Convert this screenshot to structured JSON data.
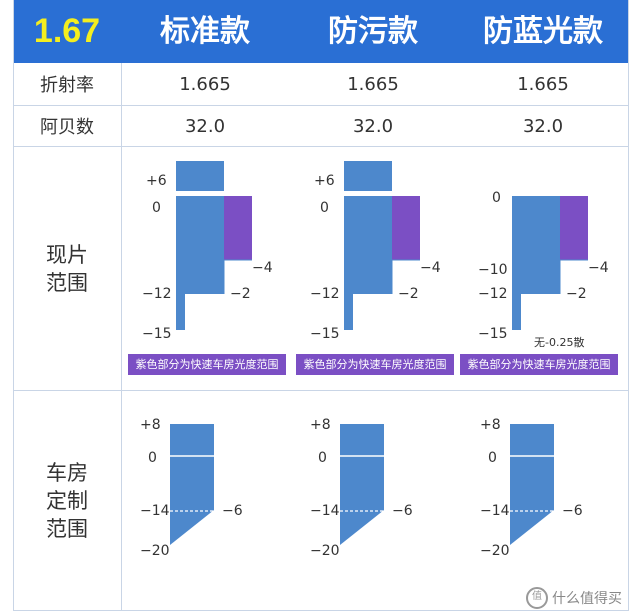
{
  "header": {
    "index": "1.67",
    "columns": [
      "标准款",
      "防污款",
      "防蓝光款"
    ]
  },
  "rows": {
    "refractive": {
      "label": "折射率",
      "values": [
        "1.665",
        "1.665",
        "1.665"
      ]
    },
    "abbe": {
      "label": "阿贝数",
      "values": [
        "32.0",
        "32.0",
        "32.0"
      ]
    }
  },
  "stock_range": {
    "label_line1": "现片",
    "label_line2": "范围",
    "caption": "紫色部分为快速车房光度范围",
    "note": "无-0.25散",
    "charts": [
      {
        "sph_max": 6,
        "sph_min_narrow": -15,
        "sph_min_wide": -12,
        "cyl_min": -2,
        "fast_cyl_min": -4,
        "ticks": [
          "+6",
          "0",
          "−12",
          "−15"
        ],
        "cyl_labels": [
          "−4",
          "−2"
        ]
      },
      {
        "sph_max": 6,
        "sph_min_narrow": -15,
        "sph_min_wide": -12,
        "cyl_min": -2,
        "fast_cyl_min": -4,
        "ticks": [
          "+6",
          "0",
          "−12",
          "−15"
        ],
        "cyl_labels": [
          "−4",
          "−2"
        ]
      },
      {
        "sph_max": 0,
        "sph_min_narrow": -15,
        "sph_min_wide": -12,
        "fast_sph_min": -10,
        "cyl_min": -2,
        "fast_cyl_min": -4,
        "ticks": [
          "0",
          "−10",
          "−12",
          "−15"
        ],
        "cyl_labels": [
          "−4",
          "−2"
        ]
      }
    ]
  },
  "custom_range": {
    "label_line1": "车房",
    "label_line2": "定制",
    "label_line3": "范围",
    "charts": [
      {
        "sph_max": 8,
        "sph_min": -20,
        "diag_at": -14,
        "cyl_min": -6,
        "ticks": [
          "+8",
          "0",
          "−14",
          "−20"
        ],
        "cyl_label": "−6"
      },
      {
        "sph_max": 8,
        "sph_min": -20,
        "diag_at": -14,
        "cyl_min": -6,
        "ticks": [
          "+8",
          "0",
          "−14",
          "−20"
        ],
        "cyl_label": "−6"
      },
      {
        "sph_max": 8,
        "sph_min": -20,
        "diag_at": -14,
        "cyl_min": -6,
        "ticks": [
          "+8",
          "0",
          "−14",
          "−20"
        ],
        "cyl_label": "−6"
      }
    ]
  },
  "watermark": {
    "text": "什么值得买",
    "icon": "smzdm-logo-icon"
  },
  "colors": {
    "header_bg": "#2a6fd4",
    "index_text": "#f4ee1f",
    "bar_blue": "#4d88cc",
    "fast_purple": "#7b4fc4",
    "grid_line": "#c9d5e6"
  }
}
